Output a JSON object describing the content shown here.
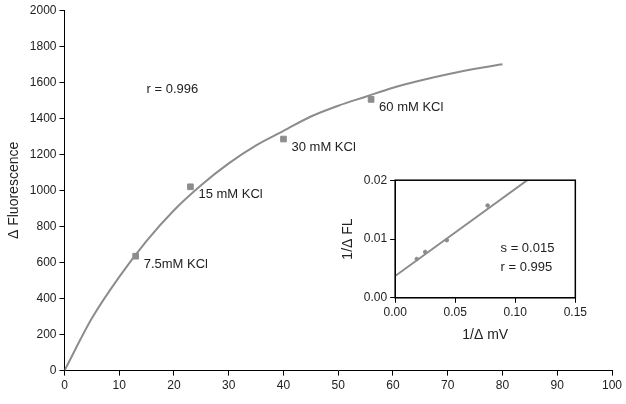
{
  "chart_data": [
    {
      "type": "scatter",
      "y_label": "Δ Fluorescence",
      "annotations": [
        "r = 0.996"
      ],
      "xlim": [
        0,
        100
      ],
      "xticks": [
        0,
        10,
        20,
        30,
        40,
        50,
        60,
        70,
        80,
        90,
        100
      ],
      "ylim": [
        0,
        2000
      ],
      "yticks": [
        0,
        200,
        400,
        600,
        800,
        1000,
        1200,
        1400,
        1600,
        1800,
        2000
      ],
      "grid": false,
      "series": [
        {
          "type": "scatter",
          "marker": "square",
          "color": "#8c8c8c",
          "x": [
            13,
            23,
            40,
            56
          ],
          "values": [
            635,
            1020,
            1285,
            1505
          ],
          "point_labels": [
            "7.5mM KCl",
            "15 mM KCl",
            "30 mM KCl",
            "60 mM KCl"
          ]
        },
        {
          "type": "line",
          "line_style": "solid",
          "color": "#8c8c8c",
          "x": [
            0,
            5,
            10,
            15,
            20,
            25,
            30,
            35,
            40,
            45,
            50,
            55,
            60,
            65,
            70,
            75,
            80
          ],
          "values": [
            0,
            290,
            520,
            720,
            890,
            1030,
            1150,
            1250,
            1330,
            1410,
            1470,
            1520,
            1570,
            1610,
            1645,
            1675,
            1700
          ]
        }
      ]
    },
    {
      "type": "scatter",
      "x_label": "1/Δ mV",
      "y_label": "1/Δ FL",
      "annotations": [
        "s = 0.015",
        "r = 0.995"
      ],
      "xlim": [
        0,
        0.15
      ],
      "xticks": [
        {
          "value": 0,
          "label": "0.00"
        },
        {
          "value": 0.05,
          "label": "0.05"
        },
        {
          "value": 0.1,
          "label": "0.10"
        },
        {
          "value": 0.15,
          "label": "0.15"
        }
      ],
      "ylim": [
        0,
        0.02
      ],
      "yticks": [
        {
          "value": 0,
          "label": "0.00"
        },
        {
          "value": 0.01,
          "label": "0.01"
        },
        {
          "value": 0.02,
          "label": "0.02"
        }
      ],
      "grid": false,
      "series": [
        {
          "type": "scatter",
          "marker": "circle",
          "color": "#8c8c8c",
          "x": [
            0.018,
            0.025,
            0.043,
            0.077
          ],
          "values": [
            0.0066,
            0.0078,
            0.0098,
            0.0157
          ]
        },
        {
          "type": "line",
          "line_style": "solid",
          "color": "#8c8c8c",
          "x": [
            0,
            0.11
          ],
          "values": [
            0.0037,
            0.02
          ]
        }
      ]
    }
  ]
}
